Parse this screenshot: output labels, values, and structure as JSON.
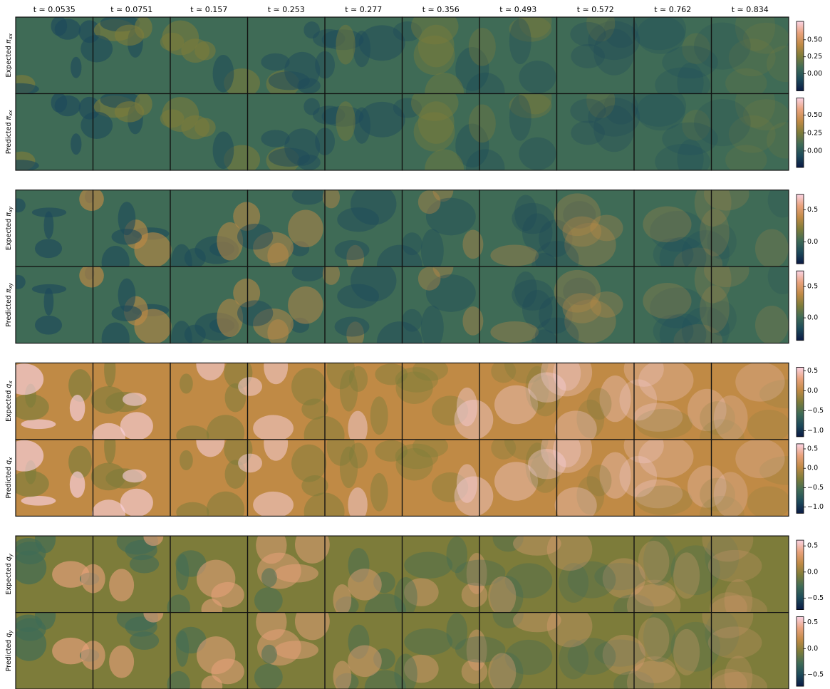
{
  "chart_data": {
    "type": "image-grid",
    "column_titles": [
      "t ≃ 0.0535",
      "t ≃ 0.0751",
      "t ≃ 0.157",
      "t ≃ 0.253",
      "t ≃ 0.277",
      "t ≃ 0.356",
      "t ≃ 0.493",
      "t ≃ 0.572",
      "t ≃ 0.762",
      "t ≃ 0.834"
    ],
    "colormap": [
      "#0b1a45",
      "#1d4a5a",
      "#3f6b56",
      "#7d7c3a",
      "#c08a45",
      "#e9a27c",
      "#fbd3e4"
    ],
    "rows": [
      {
        "prefix": "Expected",
        "symbol": "π",
        "subscript": "xx",
        "clim": [
          -0.25,
          0.77
        ],
        "cticks": [
          {
            "value": 0.5,
            "label": "0.50"
          },
          {
            "value": 0.25,
            "label": "0.25"
          },
          {
            "value": 0,
            "label": "0.00"
          }
        ]
      },
      {
        "prefix": "Predicted",
        "symbol": "π",
        "subscript": "xx",
        "clim": [
          -0.23,
          0.74
        ],
        "cticks": [
          {
            "value": 0.5,
            "label": "0.50"
          },
          {
            "value": 0.25,
            "label": "0.25"
          },
          {
            "value": 0,
            "label": "0.00"
          }
        ]
      },
      {
        "prefix": "Expected",
        "symbol": "π",
        "subscript": "xy",
        "clim": [
          -0.34,
          0.74
        ],
        "cticks": [
          0.5,
          {
            "value": 0,
            "label": "0.0"
          }
        ]
      },
      {
        "prefix": "Predicted",
        "symbol": "π",
        "subscript": "xy",
        "clim": [
          -0.36,
          0.75
        ],
        "cticks": [
          0.5,
          {
            "value": 0,
            "label": "0.0"
          }
        ]
      },
      {
        "prefix": "Expected",
        "symbol": "q",
        "subscript": "x",
        "clim": [
          -1.15,
          0.59
        ],
        "cticks": [
          0.5,
          {
            "value": 0,
            "label": "0.0"
          },
          {
            "value": -0.5,
            "label": "−0.5"
          },
          {
            "value": -1,
            "label": "−1.0"
          }
        ]
      },
      {
        "prefix": "Predicted",
        "symbol": "q",
        "subscript": "x",
        "clim": [
          -1.16,
          0.63
        ],
        "cticks": [
          0.5,
          {
            "value": 0,
            "label": "0.0"
          },
          {
            "value": -0.5,
            "label": "−0.5"
          },
          {
            "value": -1,
            "label": "−1.0"
          }
        ]
      },
      {
        "prefix": "Expected",
        "symbol": "q",
        "subscript": "y",
        "clim": [
          -0.72,
          0.61
        ],
        "cticks": [
          0.5,
          {
            "value": 0,
            "label": "0.0"
          },
          {
            "value": -0.5,
            "label": "−0.5"
          }
        ]
      },
      {
        "prefix": "Predicted",
        "symbol": "q",
        "subscript": "y",
        "clim": [
          -0.72,
          0.61
        ],
        "cticks": [
          0.5,
          {
            "value": 0,
            "label": "0.0"
          },
          {
            "value": -0.5,
            "label": "−0.5"
          }
        ]
      }
    ]
  }
}
